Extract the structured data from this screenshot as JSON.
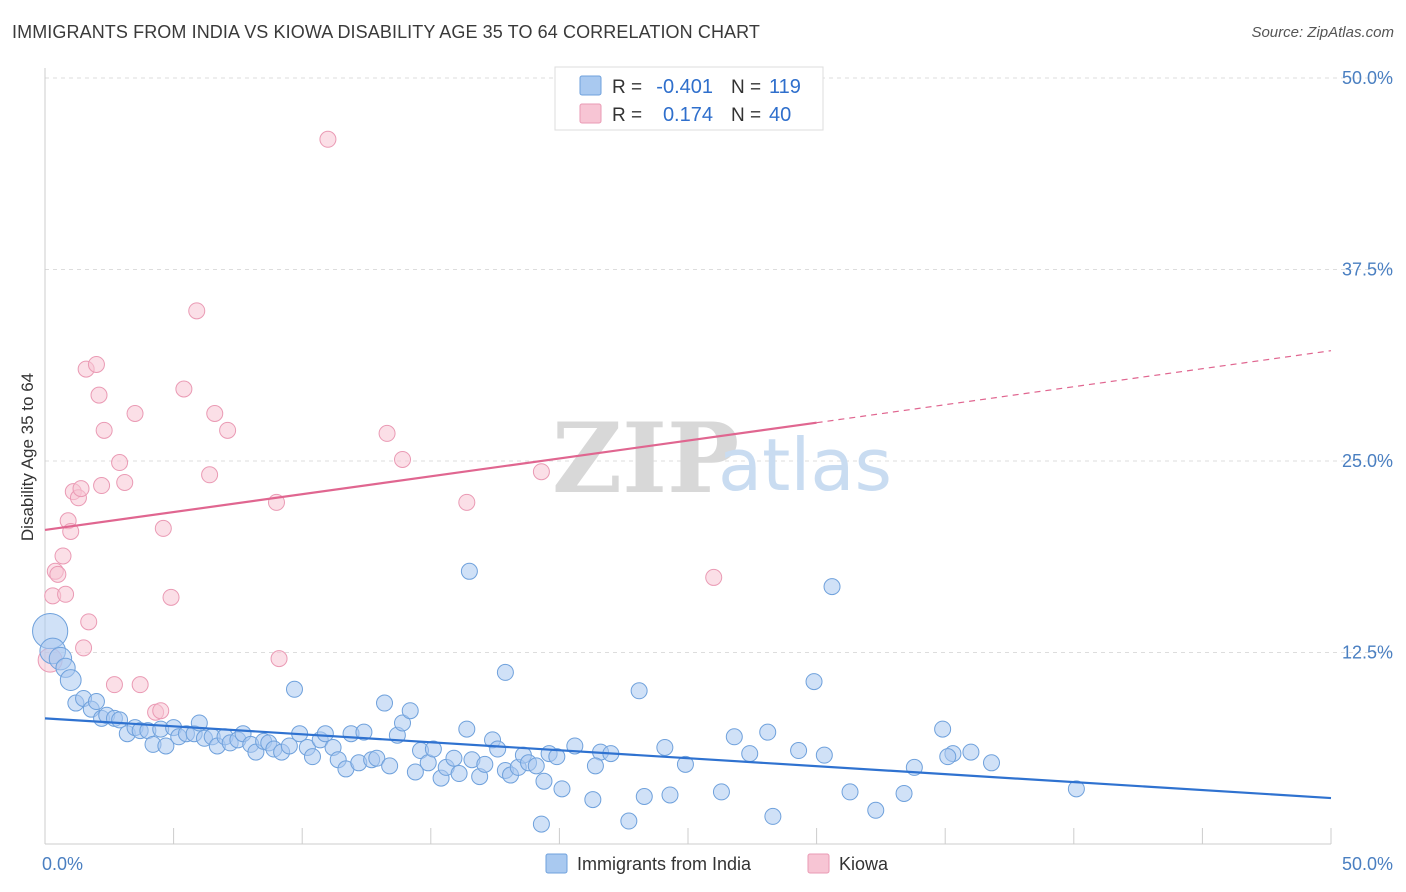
{
  "title": "IMMIGRANTS FROM INDIA VS KIOWA DISABILITY AGE 35 TO 64 CORRELATION CHART",
  "source": "Source: ZipAtlas.com",
  "watermark": {
    "zip": "ZIP",
    "atlas": "atlas"
  },
  "colors": {
    "india_fill": "#a9c9f0",
    "india_stroke": "#6fa1dc",
    "india_line": "#2f72d0",
    "kiowa_fill": "#f7c5d4",
    "kiowa_stroke": "#ea9ab4",
    "kiowa_line": "#e06690",
    "grid": "#dddddd",
    "axis": "#cccccc",
    "tick_text": "#4a7fc1"
  },
  "legend": {
    "rows": [
      {
        "r_label": "R =",
        "r_value": "-0.401",
        "n_label": "N =",
        "n_value": "119"
      },
      {
        "r_label": "R =",
        "r_value": "0.174",
        "n_label": "N =",
        "n_value": "40"
      }
    ]
  },
  "chart_data": {
    "type": "scatter",
    "title": "IMMIGRANTS FROM INDIA VS KIOWA DISABILITY AGE 35 TO 64 CORRELATION CHART",
    "ylabel": "Disability Age 35 to 64",
    "xlabel": "",
    "xlim": [
      0,
      50
    ],
    "ylim": [
      0,
      50
    ],
    "x_tick_labels": [
      "0.0%",
      "50.0%"
    ],
    "y_ticks": [
      12.5,
      25.0,
      37.5,
      50.0
    ],
    "y_tick_labels": [
      "12.5%",
      "25.0%",
      "37.5%",
      "50.0%"
    ],
    "grid": true,
    "legend_placement": "top-center",
    "series": [
      {
        "name": "Immigrants from India",
        "stats": {
          "R": -0.401,
          "N": 119
        },
        "trend": {
          "x0": 0,
          "y0": 8.2,
          "x1": 50,
          "y1": 3.0
        },
        "points": [
          [
            0.2,
            13.9,
            2.2
          ],
          [
            0.3,
            12.6,
            1.6
          ],
          [
            0.6,
            12.1,
            1.4
          ],
          [
            0.8,
            11.5,
            1.2
          ],
          [
            1.0,
            10.7,
            1.3
          ],
          [
            1.2,
            9.2,
            1.0
          ],
          [
            1.5,
            9.5,
            1.0
          ],
          [
            1.8,
            8.8,
            1.0
          ],
          [
            2.0,
            9.3,
            1.0
          ],
          [
            2.2,
            8.2,
            1.0
          ],
          [
            2.4,
            8.4,
            1.0
          ],
          [
            2.7,
            8.2,
            1.0
          ],
          [
            2.9,
            8.1,
            1.0
          ],
          [
            3.2,
            7.2,
            1.0
          ],
          [
            3.5,
            7.6,
            1.0
          ],
          [
            3.7,
            7.4,
            1.0
          ],
          [
            4.0,
            7.4,
            1.0
          ],
          [
            4.2,
            6.5,
            1.0
          ],
          [
            4.5,
            7.5,
            1.0
          ],
          [
            4.7,
            6.4,
            1.0
          ],
          [
            5.0,
            7.6,
            1.0
          ],
          [
            5.2,
            7.0,
            1.0
          ],
          [
            5.5,
            7.2,
            1.0
          ],
          [
            5.8,
            7.2,
            1.0
          ],
          [
            6.0,
            7.9,
            1.0
          ],
          [
            6.2,
            6.9,
            1.0
          ],
          [
            6.5,
            7.0,
            1.0
          ],
          [
            6.7,
            6.4,
            1.0
          ],
          [
            7.0,
            7.0,
            1.0
          ],
          [
            7.2,
            6.6,
            1.0
          ],
          [
            7.5,
            6.8,
            1.0
          ],
          [
            7.7,
            7.2,
            1.0
          ],
          [
            8.0,
            6.5,
            1.0
          ],
          [
            8.2,
            6.0,
            1.0
          ],
          [
            8.5,
            6.7,
            1.0
          ],
          [
            8.7,
            6.6,
            1.0
          ],
          [
            8.9,
            6.2,
            1.0
          ],
          [
            9.2,
            6.0,
            1.0
          ],
          [
            9.5,
            6.4,
            1.0
          ],
          [
            9.7,
            10.1,
            1.0
          ],
          [
            9.9,
            7.2,
            1.0
          ],
          [
            10.2,
            6.3,
            1.0
          ],
          [
            10.4,
            5.7,
            1.0
          ],
          [
            10.7,
            6.8,
            1.0
          ],
          [
            10.9,
            7.2,
            1.0
          ],
          [
            11.2,
            6.3,
            1.0
          ],
          [
            11.4,
            5.5,
            1.0
          ],
          [
            11.7,
            4.9,
            1.0
          ],
          [
            11.9,
            7.2,
            1.0
          ],
          [
            12.2,
            5.3,
            1.0
          ],
          [
            12.4,
            7.3,
            1.0
          ],
          [
            12.7,
            5.5,
            1.0
          ],
          [
            12.9,
            5.6,
            1.0
          ],
          [
            13.2,
            9.2,
            1.0
          ],
          [
            13.4,
            5.1,
            1.0
          ],
          [
            13.7,
            7.1,
            1.0
          ],
          [
            13.9,
            7.9,
            1.0
          ],
          [
            14.2,
            8.7,
            1.0
          ],
          [
            14.4,
            4.7,
            1.0
          ],
          [
            14.6,
            6.1,
            1.0
          ],
          [
            14.9,
            5.3,
            1.0
          ],
          [
            15.1,
            6.2,
            1.0
          ],
          [
            15.4,
            4.3,
            1.0
          ],
          [
            15.6,
            5.0,
            1.0
          ],
          [
            15.9,
            5.6,
            1.0
          ],
          [
            16.1,
            4.6,
            1.0
          ],
          [
            16.4,
            7.5,
            1.0
          ],
          [
            16.6,
            5.5,
            1.0
          ],
          [
            16.9,
            4.4,
            1.0
          ],
          [
            17.1,
            5.2,
            1.0
          ],
          [
            17.4,
            6.8,
            1.0
          ],
          [
            17.6,
            6.2,
            1.0
          ],
          [
            17.9,
            4.8,
            1.0
          ],
          [
            18.1,
            4.5,
            1.0
          ],
          [
            18.4,
            5.0,
            1.0
          ],
          [
            18.6,
            5.8,
            1.0
          ],
          [
            18.8,
            5.3,
            1.0
          ],
          [
            19.1,
            5.1,
            1.0
          ],
          [
            19.4,
            4.1,
            1.0
          ],
          [
            19.6,
            5.9,
            1.0
          ],
          [
            19.9,
            5.7,
            1.0
          ],
          [
            20.1,
            3.6,
            1.0
          ],
          [
            20.6,
            6.4,
            1.0
          ],
          [
            21.3,
            2.9,
            1.0
          ],
          [
            21.6,
            6.0,
            1.0
          ],
          [
            22.0,
            5.9,
            1.0
          ],
          [
            23.1,
            10.0,
            1.0
          ],
          [
            23.3,
            3.1,
            1.0
          ],
          [
            24.1,
            6.3,
            1.0
          ],
          [
            24.3,
            3.2,
            1.0
          ],
          [
            24.9,
            5.2,
            1.0
          ],
          [
            26.3,
            3.4,
            1.0
          ],
          [
            26.8,
            7.0,
            1.0
          ],
          [
            27.4,
            5.9,
            1.0
          ],
          [
            28.1,
            7.3,
            1.0
          ],
          [
            29.3,
            6.1,
            1.0
          ],
          [
            30.3,
            5.8,
            1.0
          ],
          [
            31.3,
            3.4,
            1.0
          ],
          [
            32.3,
            2.2,
            1.0
          ],
          [
            33.4,
            3.3,
            1.0
          ],
          [
            33.8,
            5.0,
            1.0
          ],
          [
            34.9,
            7.5,
            1.0
          ],
          [
            35.3,
            5.9,
            1.0
          ],
          [
            36.0,
            6.0,
            1.0
          ],
          [
            36.8,
            5.3,
            1.0
          ],
          [
            40.1,
            3.6,
            1.0
          ],
          [
            22.7,
            1.5,
            1.0
          ],
          [
            28.3,
            1.8,
            1.0
          ],
          [
            30.6,
            16.8,
            1.0
          ],
          [
            29.9,
            10.6,
            1.0
          ],
          [
            16.5,
            17.8,
            1.0
          ],
          [
            17.9,
            11.2,
            1.0
          ],
          [
            35.1,
            5.7,
            1.0
          ],
          [
            19.3,
            1.3,
            1.0
          ],
          [
            21.4,
            5.1,
            1.0
          ]
        ]
      },
      {
        "name": "Kiowa",
        "stats": {
          "R": 0.174,
          "N": 40
        },
        "trend": {
          "x0": 0,
          "y0": 20.5,
          "x1": 30,
          "y1": 27.5,
          "x_dashed_end": 50,
          "y_dashed_end": 32.2
        },
        "points": [
          [
            0.2,
            12.0,
            1.5
          ],
          [
            0.3,
            16.2,
            1.0
          ],
          [
            0.4,
            17.8,
            1.0
          ],
          [
            0.5,
            17.6,
            1.0
          ],
          [
            0.7,
            18.8,
            1.0
          ],
          [
            0.8,
            16.3,
            1.0
          ],
          [
            0.9,
            21.1,
            1.0
          ],
          [
            1.0,
            20.4,
            1.0
          ],
          [
            1.1,
            23.0,
            1.0
          ],
          [
            1.3,
            22.6,
            1.0
          ],
          [
            1.4,
            23.2,
            1.0
          ],
          [
            1.5,
            12.8,
            1.0
          ],
          [
            1.6,
            31.0,
            1.0
          ],
          [
            1.7,
            14.5,
            1.0
          ],
          [
            2.0,
            31.3,
            1.0
          ],
          [
            2.1,
            29.3,
            1.0
          ],
          [
            2.2,
            23.4,
            1.0
          ],
          [
            2.3,
            27.0,
            1.0
          ],
          [
            2.7,
            10.4,
            1.0
          ],
          [
            2.9,
            24.9,
            1.0
          ],
          [
            3.1,
            23.6,
            1.0
          ],
          [
            3.5,
            28.1,
            1.0
          ],
          [
            3.7,
            10.4,
            1.0
          ],
          [
            4.3,
            8.6,
            1.0
          ],
          [
            4.5,
            8.7,
            1.0
          ],
          [
            4.6,
            20.6,
            1.0
          ],
          [
            4.9,
            16.1,
            1.0
          ],
          [
            5.4,
            29.7,
            1.0
          ],
          [
            5.9,
            34.8,
            1.0
          ],
          [
            6.4,
            24.1,
            1.0
          ],
          [
            6.6,
            28.1,
            1.0
          ],
          [
            7.1,
            27.0,
            1.0
          ],
          [
            9.0,
            22.3,
            1.0
          ],
          [
            9.1,
            12.1,
            1.0
          ],
          [
            11.0,
            46.0,
            1.0
          ],
          [
            13.3,
            26.8,
            1.0
          ],
          [
            13.9,
            25.1,
            1.0
          ],
          [
            16.4,
            22.3,
            1.0
          ],
          [
            19.3,
            24.3,
            1.0
          ],
          [
            26.0,
            17.4,
            1.0
          ]
        ]
      }
    ]
  },
  "bottom_legend": [
    {
      "label": "Immigrants from India"
    },
    {
      "label": "Kiowa"
    }
  ]
}
